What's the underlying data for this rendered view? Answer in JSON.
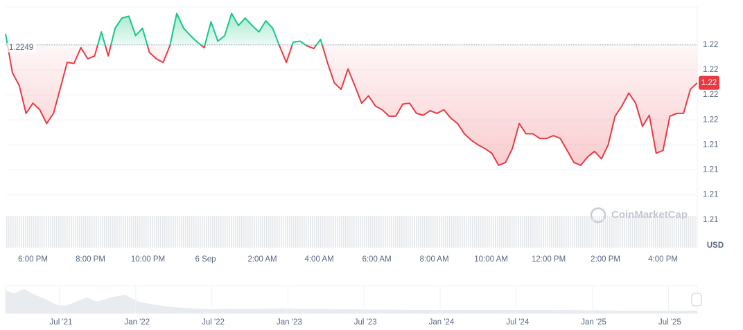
{
  "chart_data": {
    "type": "line",
    "series": [
      {
        "name": "Price",
        "color_up": "#16c784",
        "color_down": "#ea3943",
        "values": [
          1.2261,
          1.2219,
          1.2205,
          1.2175,
          1.2186,
          1.2179,
          1.2164,
          1.2175,
          1.2202,
          1.223,
          1.2229,
          1.2246,
          1.2234,
          1.2237,
          1.2263,
          1.2237,
          1.2267,
          1.2278,
          1.228,
          1.2259,
          1.2267,
          1.2241,
          1.2234,
          1.223,
          1.2248,
          1.2283,
          1.2267,
          1.2259,
          1.2252,
          1.2246,
          1.2274,
          1.2253,
          1.2259,
          1.2283,
          1.227,
          1.2278,
          1.227,
          1.2263,
          1.2275,
          1.2267,
          1.2248,
          1.223,
          1.2252,
          1.2253,
          1.2248,
          1.2245,
          1.2255,
          1.223,
          1.2208,
          1.2201,
          1.2223,
          1.2205,
          1.2186,
          1.2194,
          1.2183,
          1.2179,
          1.2172,
          1.2172,
          1.2185,
          1.2186,
          1.2175,
          1.2173,
          1.2178,
          1.2175,
          1.2179,
          1.217,
          1.2164,
          1.2153,
          1.2146,
          1.2141,
          1.2137,
          1.2132,
          1.2119,
          1.2122,
          1.2137,
          1.2164,
          1.2153,
          1.2153,
          1.2148,
          1.2148,
          1.2151,
          1.2148,
          1.2135,
          1.2122,
          1.2119,
          1.2128,
          1.2134,
          1.2126,
          1.2141,
          1.2172,
          1.2183,
          1.2197,
          1.2186,
          1.2161,
          1.2173,
          1.2132,
          1.2135,
          1.2172,
          1.2175,
          1.2175,
          1.2201,
          1.2208
        ]
      }
    ],
    "baseline": 1.2249,
    "baseline_label": "1.2249",
    "current_label": "1.22",
    "xlim": [
      0,
      101
    ],
    "xticks": [
      {
        "value": 4,
        "label": "6:00 PM"
      },
      {
        "value": 12.4,
        "label": "8:00 PM"
      },
      {
        "value": 20.8,
        "label": "10:00 PM"
      },
      {
        "value": 29.2,
        "label": "6 Sep"
      },
      {
        "value": 37.5,
        "label": "2:00 AM"
      },
      {
        "value": 45.8,
        "label": "4:00 AM"
      },
      {
        "value": 54.2,
        "label": "6:00 AM"
      },
      {
        "value": 62.6,
        "label": "8:00 AM"
      },
      {
        "value": 70.9,
        "label": "10:00 AM"
      },
      {
        "value": 79.3,
        "label": "12:00 PM"
      },
      {
        "value": 87.6,
        "label": "2:00 PM"
      },
      {
        "value": 96,
        "label": "4:00 PM"
      }
    ],
    "ylim": [
      1.203,
      1.229
    ],
    "yticks": [
      {
        "value": 1.2249,
        "label": "1.22"
      },
      {
        "value": 1.2222,
        "label": "1.22"
      },
      {
        "value": 1.2195,
        "label": "1.22"
      },
      {
        "value": 1.2168,
        "label": "1.22"
      },
      {
        "value": 1.2141,
        "label": "1.21"
      },
      {
        "value": 1.2114,
        "label": "1.21"
      },
      {
        "value": 1.2087,
        "label": "1.21"
      },
      {
        "value": 1.206,
        "label": "1.21"
      }
    ],
    "grid": true,
    "currency": "USD",
    "watermark": "CoinMarketCap",
    "navigator_labels": [
      "Jul '21",
      "Jan '22",
      "Jul '22",
      "Jan '23",
      "Jul '23",
      "Jan '24",
      "Jul '24",
      "Jan '25",
      "Jul '25"
    ]
  }
}
